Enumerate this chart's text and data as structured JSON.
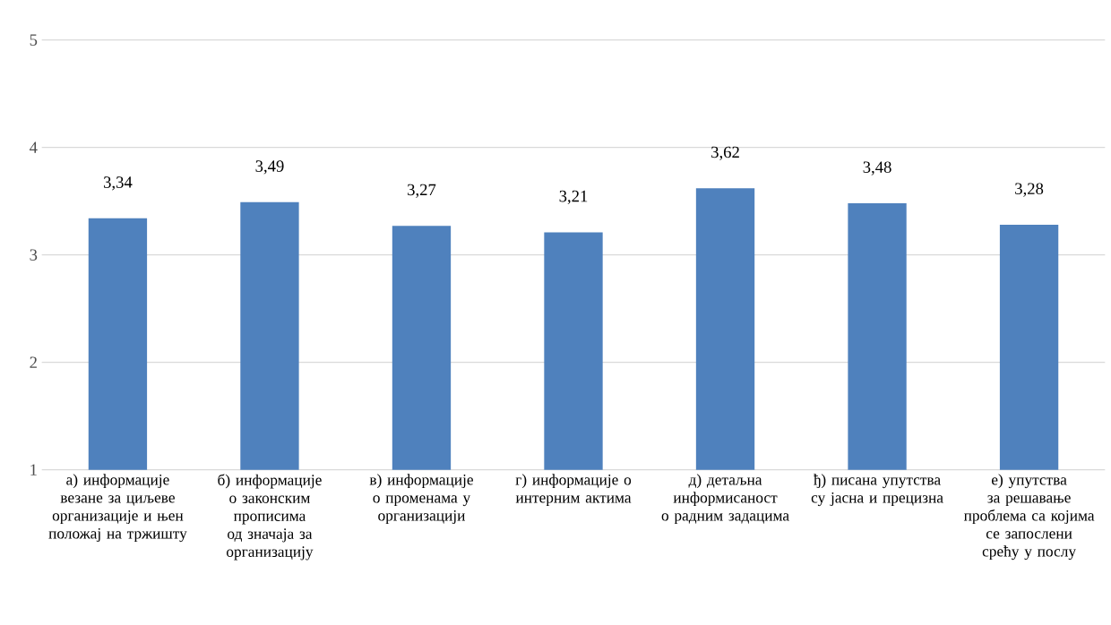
{
  "chart_data": {
    "type": "bar",
    "categories": [
      "а) информације везане за циљеве организације и њен положај на тржишту",
      "б) информације о законским прописима од значаја за организацију",
      "в) информације о променама у организацији",
      "г) информације о интерним актима",
      "д) детаљна информисаност о радним задацима",
      "ђ) писана упутства су јасна и прецизна",
      "е) упутства за решавање проблема са којима се запослени срећу у послу"
    ],
    "values": [
      3.34,
      3.49,
      3.27,
      3.21,
      3.62,
      3.48,
      3.28
    ],
    "color": "#4f81bd",
    "ylim": [
      1,
      5
    ],
    "yticks": [
      1,
      2,
      3,
      4,
      5
    ],
    "value_labels": [
      "3,34",
      "3,49",
      "3,27",
      "3,21",
      "3,62",
      "3,48",
      "3,28"
    ],
    "grid": "y"
  }
}
